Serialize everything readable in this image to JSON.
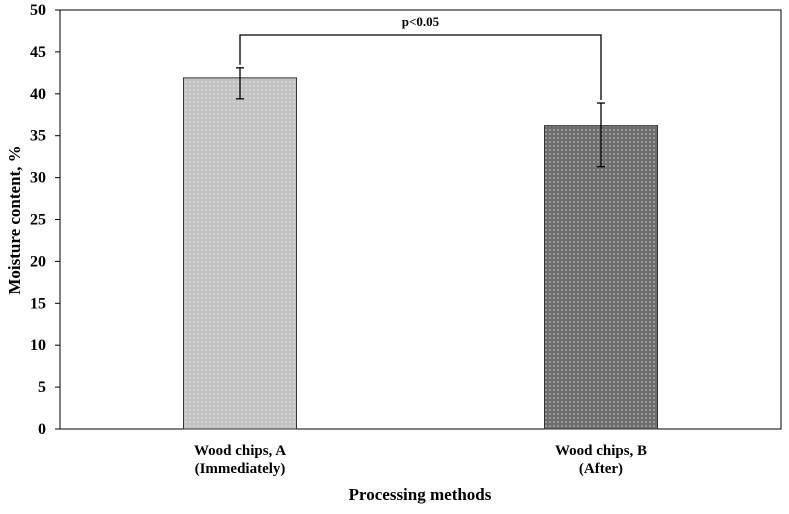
{
  "chart_data": {
    "type": "bar",
    "title": "",
    "xlabel": "Processing methods",
    "ylabel": "Moisture content, %",
    "ylim": [
      0,
      50
    ],
    "yticks": [
      0,
      5,
      10,
      15,
      20,
      25,
      30,
      35,
      40,
      45,
      50
    ],
    "categories": [
      [
        "Wood chips, A",
        "(Immediately)"
      ],
      [
        "Wood chips, B",
        "(After)"
      ]
    ],
    "values": [
      41.9,
      36.2
    ],
    "error_low": [
      39.4,
      31.3
    ],
    "error_high": [
      43.1,
      38.9
    ],
    "bar_colors": [
      "#c9c9c9",
      "#777777"
    ],
    "significance": {
      "label": "p<0.05",
      "between": [
        0,
        1
      ]
    },
    "grid": false,
    "legend": "none"
  }
}
